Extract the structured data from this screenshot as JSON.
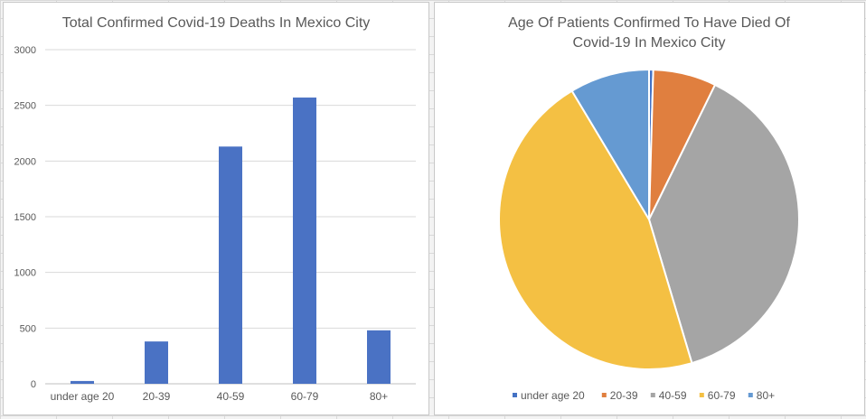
{
  "chart_data": [
    {
      "type": "bar",
      "title": "Total Confirmed Covid-19 Deaths In Mexico City",
      "categories": [
        "under age 20",
        "20-39",
        "40-59",
        "60-79",
        "80+"
      ],
      "values": [
        25,
        380,
        2130,
        2570,
        480
      ],
      "ylim": [
        0,
        3000
      ],
      "yticks": [
        "0",
        "500",
        "1000",
        "1500",
        "2000",
        "2500",
        "3000"
      ],
      "grid": true,
      "color": "#4a72c4"
    },
    {
      "type": "pie",
      "title_lines": [
        "Age Of Patients Confirmed To Have Died Of",
        "Covid-19 In Mexico City"
      ],
      "labels": [
        "under age 20",
        "20-39",
        "40-59",
        "60-79",
        "80+"
      ],
      "values": [
        25,
        380,
        2130,
        2570,
        480
      ],
      "colors": [
        "#4472c4",
        "#e07f3f",
        "#a5a5a5",
        "#f4c043",
        "#659ad2"
      ],
      "legend": "bottom"
    }
  ]
}
